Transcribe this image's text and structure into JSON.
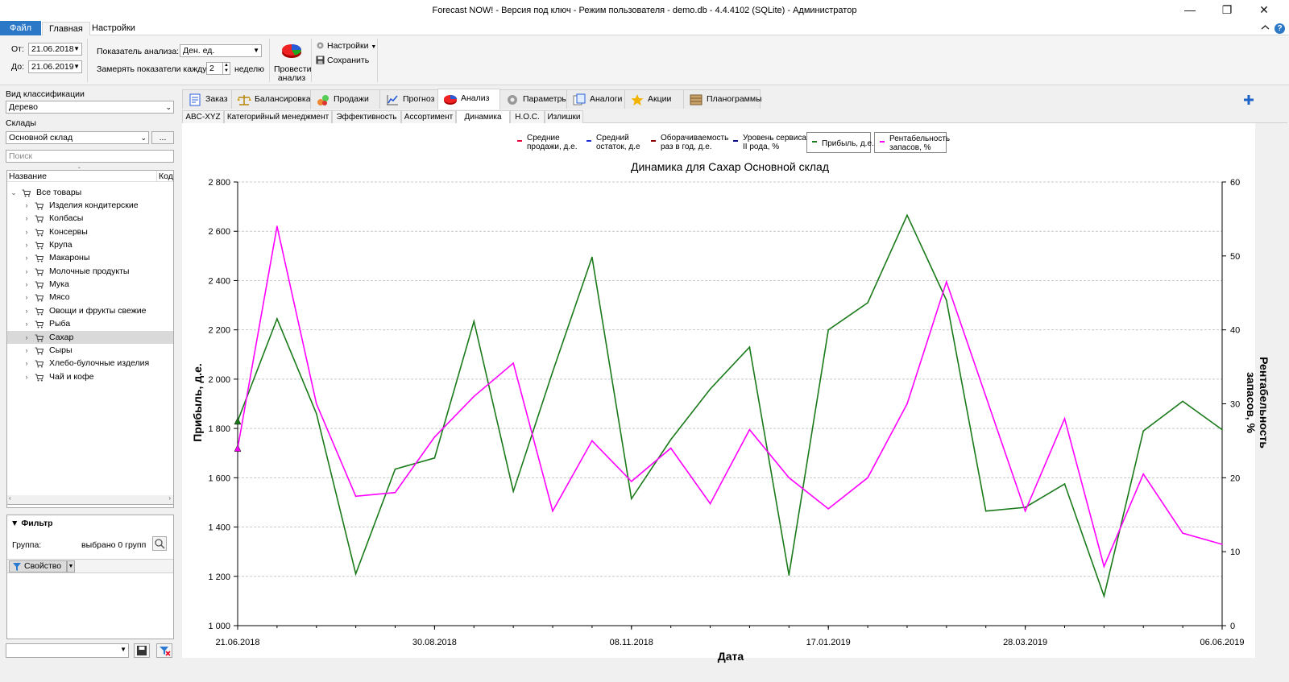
{
  "window": {
    "title": "Forecast NOW! - Версия под ключ - Режим пользователя - demo.db - 4.4.4102 (SQLite) - Администратор",
    "minimize": "—",
    "maximize": "❐",
    "close": "✕"
  },
  "ribbon_tabs": [
    {
      "label": "Файл"
    },
    {
      "label": "Главная"
    },
    {
      "label": "Настройки"
    }
  ],
  "ribbon": {
    "from_label": "От:",
    "from_value": "21.06.2018",
    "to_label": "До:",
    "to_value": "21.06.2019",
    "indicator_label": "Показатель анализа:",
    "indicator_value": "Ден. ед.",
    "measure_label": "Замерять показатели каждую",
    "measure_value": "2",
    "measure_unit": "неделю",
    "run_label_1": "Провести",
    "run_label_2": "анализ",
    "settings_label": "Настройки",
    "save_label": "Сохранить"
  },
  "left": {
    "classification_label": "Вид классификации",
    "classification_value": "Дерево",
    "warehouses_label": "Склады",
    "warehouse_value": "Основной склад",
    "more_button": "...",
    "search_placeholder": "Поиск",
    "col_name": "Название",
    "col_code": "Код",
    "root": "Все товары",
    "items": [
      {
        "label": "Изделия кондитерские"
      },
      {
        "label": "Колбасы"
      },
      {
        "label": "Консервы"
      },
      {
        "label": "Крупа"
      },
      {
        "label": "Макароны"
      },
      {
        "label": "Молочные продукты"
      },
      {
        "label": "Мука"
      },
      {
        "label": "Мясо"
      },
      {
        "label": "Овощи и фрукты свежие"
      },
      {
        "label": "Рыба"
      },
      {
        "label": "Сахар"
      },
      {
        "label": "Сыры"
      },
      {
        "label": "Хлебо-булочные изделия"
      },
      {
        "label": "Чай и кофе"
      }
    ],
    "filter_title": "Фильтр",
    "group_label": "Группа:",
    "group_value": "выбрано 0 групп",
    "property_button": "Свойство"
  },
  "main_tabs": [
    {
      "label": "Заказ"
    },
    {
      "label": "Балансировка"
    },
    {
      "label": "Продажи"
    },
    {
      "label": "Прогноз"
    },
    {
      "label": "Анализ"
    },
    {
      "label": "Параметры"
    },
    {
      "label": "Аналоги"
    },
    {
      "label": "Акции"
    },
    {
      "label": "Планограммы"
    }
  ],
  "sub_tabs": [
    {
      "label": "ABC-XYZ"
    },
    {
      "label": "Категорийный менеджмент"
    },
    {
      "label": "Эффективность"
    },
    {
      "label": "Ассортимент"
    },
    {
      "label": "Динамика"
    },
    {
      "label": "Н.О.С."
    },
    {
      "label": "Излишки"
    }
  ],
  "legend": [
    {
      "line1": "Средние",
      "line2": "продажи, д.е.",
      "color": "#e8003a"
    },
    {
      "line1": "Средний",
      "line2": "остаток, д.е",
      "color": "#1f2fd6"
    },
    {
      "line1": "Оборачиваемость",
      "line2": "раз в год, д.е.",
      "color": "#8b0000"
    },
    {
      "line1": "Уровень сервиса",
      "line2": "II рода, %",
      "color": "#0a0a8a"
    },
    {
      "line1": "Прибыль, д.е.",
      "line2": "",
      "color": "#1a7a1a"
    },
    {
      "line1": "Рентабельность",
      "line2": "запасов, %",
      "color": "#ff00ff"
    }
  ],
  "chart_data": {
    "type": "line",
    "title": "Динамика для Сахар Основной склад",
    "xlabel": "Дата",
    "ylabel": "Прибыль, д.е.",
    "y2label_1": "Рентабельность",
    "y2label_2": "запасов, %",
    "ylim": [
      1000,
      2800
    ],
    "y2lim": [
      0,
      60
    ],
    "y_ticks": [
      "1 000",
      "1 200",
      "1 400",
      "1 600",
      "1 800",
      "2 000",
      "2 200",
      "2 400",
      "2 600",
      "2 800"
    ],
    "y2_ticks": [
      "0",
      "10",
      "20",
      "30",
      "40",
      "50",
      "60"
    ],
    "x_tick_labels": [
      "21.06.2018",
      "30.08.2018",
      "08.11.2018",
      "17.01.2019",
      "28.03.2019",
      "06.06.2019"
    ],
    "grid": true,
    "series": [
      {
        "name": "Прибыль, д.е.",
        "axis": "left",
        "color": "#1a7a1a",
        "values": [
          1830,
          2245,
          1860,
          1210,
          1635,
          1680,
          2235,
          1545,
          2030,
          2495,
          1515,
          1755,
          1960,
          2130,
          1205,
          2200,
          2310,
          2665,
          2320,
          1465,
          1480,
          1575,
          1120,
          1790,
          1910,
          1795
        ]
      },
      {
        "name": "Рентабельность запасов, %",
        "axis": "right",
        "color": "#ff00ff",
        "values": [
          24,
          54,
          30,
          17.5,
          18,
          25.5,
          31,
          35.5,
          15.5,
          25,
          19.5,
          24,
          16.5,
          26.5,
          20,
          15.8,
          20,
          30,
          46.5,
          31,
          15.5,
          28,
          8,
          20.5,
          12.5,
          11
        ]
      }
    ]
  }
}
